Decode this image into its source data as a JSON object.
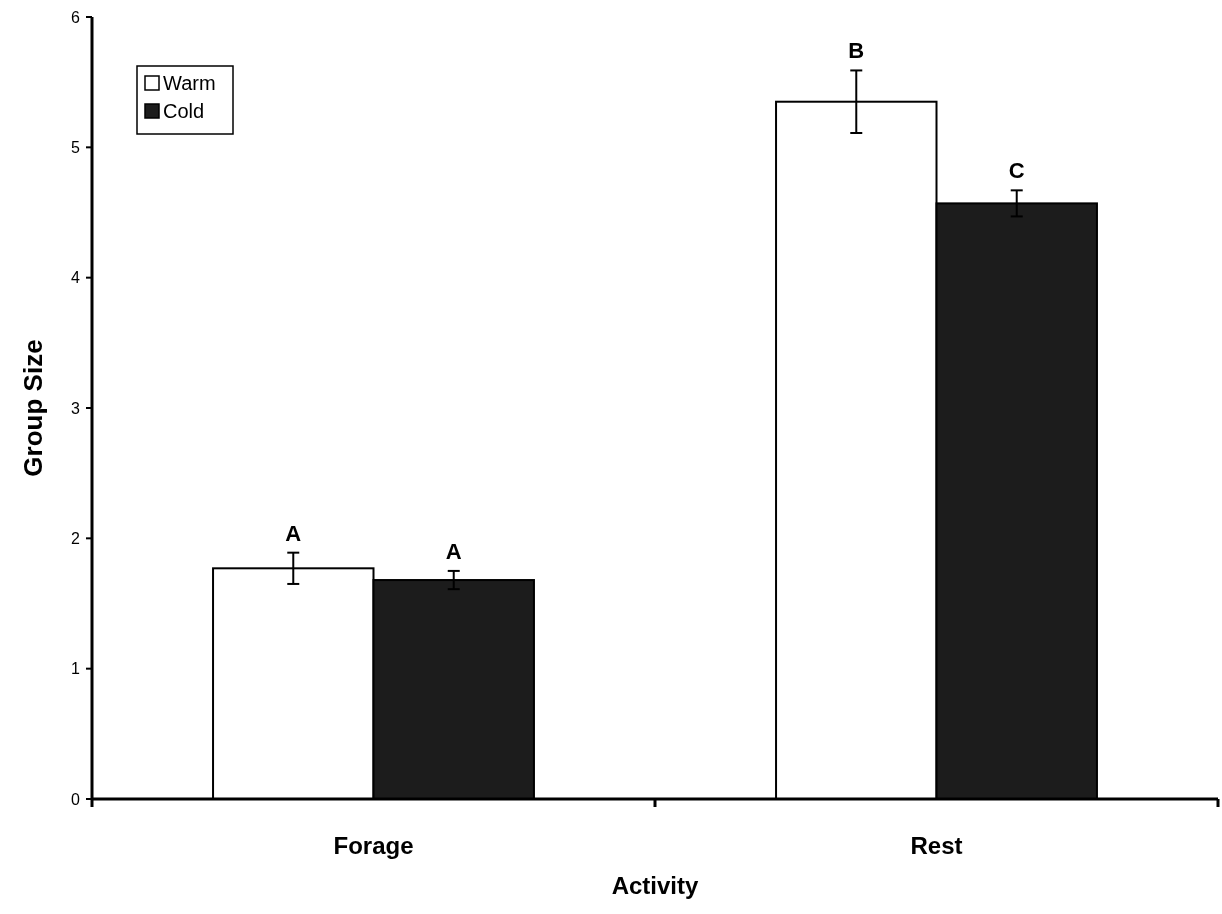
{
  "chart_data": {
    "type": "bar",
    "xlabel": "Activity",
    "ylabel": "Group Size",
    "categories": [
      "Forage",
      "Rest"
    ],
    "series": [
      {
        "name": "Warm",
        "color": "#ffffff",
        "values": [
          1.77,
          5.35
        ],
        "errors": [
          0.12,
          0.24
        ],
        "value_labels": [
          "A",
          "B"
        ]
      },
      {
        "name": "Cold",
        "color": "#1c1c1c",
        "values": [
          1.68,
          4.57
        ],
        "errors": [
          0.07,
          0.1
        ],
        "value_labels": [
          "A",
          "C"
        ]
      }
    ],
    "ylim": [
      0,
      6
    ],
    "yticks": [
      0,
      1,
      2,
      3,
      4,
      5,
      6
    ],
    "grid": false,
    "legend": "top left"
  }
}
